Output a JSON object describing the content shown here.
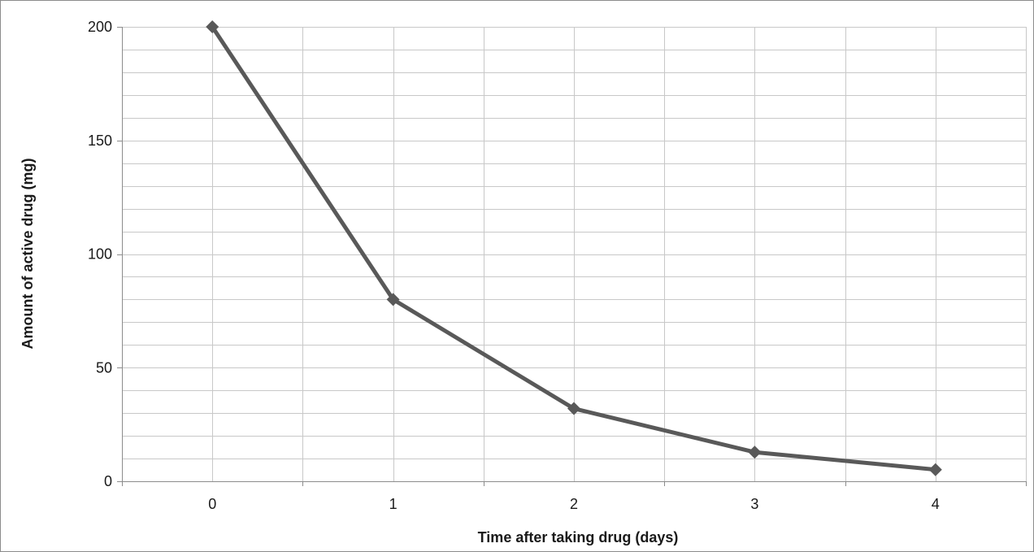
{
  "chart_data": {
    "type": "line",
    "title": "",
    "xlabel": "Time after taking drug  (days)",
    "ylabel": "Amount of active drug (mg)",
    "x": [
      0,
      1,
      2,
      3,
      4
    ],
    "x_tick_labels": [
      "0",
      "1",
      "2",
      "3",
      "4"
    ],
    "xlim": [
      -0.5,
      4.5
    ],
    "ylim": [
      0,
      200
    ],
    "y_ticks": [
      0,
      50,
      100,
      150,
      200
    ],
    "y_tick_labels": [
      "0",
      "50",
      "100",
      "150",
      "200"
    ],
    "y_minor_step": 10,
    "x_minor_step": 0.5,
    "grid": true,
    "legend": "none",
    "series": [
      {
        "values": [
          200,
          80,
          32,
          12.8,
          5.1
        ],
        "color": "#595959",
        "marker": "diamond"
      }
    ]
  }
}
